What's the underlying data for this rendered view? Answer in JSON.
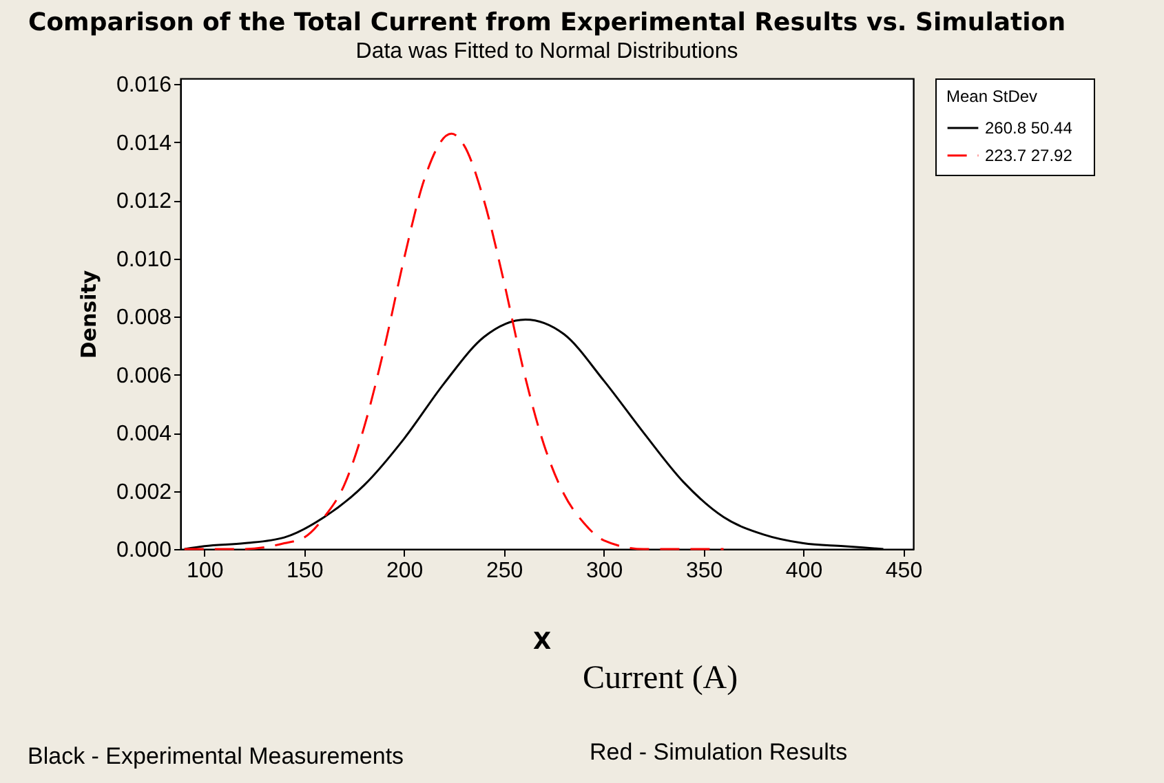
{
  "chart_data": {
    "type": "line",
    "title": "Comparison of the Total Current from Experimental Results vs. Simulation",
    "subtitle": "Data was Fitted to Normal Distributions",
    "xlabel": "X",
    "ylabel": "Density",
    "legend_title": "Mean  StDev",
    "legend": "right",
    "grid": false,
    "annotations": [
      "Current (A)",
      "Black - Experimental Measurements",
      "Red - Simulation Results"
    ],
    "xlim": [
      88,
      455
    ],
    "xticks": [
      100,
      150,
      200,
      250,
      300,
      350,
      400,
      450
    ],
    "ylim": [
      0,
      0.0162
    ],
    "yticks": [
      {
        "value": 0,
        "label": "0.000"
      },
      {
        "value": 0.002,
        "label": "0.002"
      },
      {
        "value": 0.004,
        "label": "0.004"
      },
      {
        "value": 0.006,
        "label": "0.006"
      },
      {
        "value": 0.008,
        "label": "0.008"
      },
      {
        "value": 0.01,
        "label": "0.010"
      },
      {
        "value": 0.012,
        "label": "0.012"
      },
      {
        "value": 0.014,
        "label": "0.014"
      },
      {
        "value": 0.016,
        "label": "0.016"
      }
    ],
    "series": [
      {
        "name": "260.8   50.44",
        "color": "#000000",
        "line_style": "solid",
        "x": [
          90,
          100,
          120,
          140,
          160,
          180,
          200,
          220,
          240,
          260.8,
          280,
          300,
          320,
          340,
          360,
          380,
          400,
          420,
          440
        ],
        "values": [
          0,
          0.0001,
          0.0002,
          0.0004,
          0.0011,
          0.0022,
          0.0038,
          0.0057,
          0.0073,
          0.0079,
          0.0074,
          0.0058,
          0.004,
          0.0023,
          0.0011,
          0.0005,
          0.0002,
          0.0001,
          0
        ]
      },
      {
        "name": "223.7   27.92",
        "color": "#ff0000",
        "line_style": "dashed",
        "x": [
          90,
          120,
          140,
          150,
          160,
          170,
          180,
          190,
          200,
          210,
          223.7,
          230,
          240,
          250,
          260,
          270,
          280,
          290,
          300,
          320,
          360
        ],
        "values": [
          0,
          0,
          0.0002,
          0.0004,
          0.0011,
          0.0022,
          0.0042,
          0.0069,
          0.01,
          0.0127,
          0.0143,
          0.0139,
          0.012,
          0.0092,
          0.0061,
          0.0036,
          0.0019,
          0.0009,
          0.0003,
          0,
          0
        ]
      }
    ]
  }
}
